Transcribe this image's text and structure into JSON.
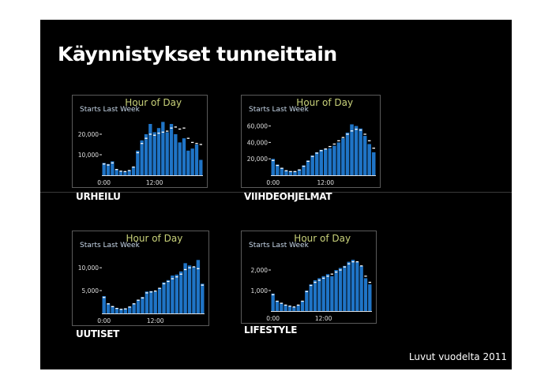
{
  "title": "Käynnistykset tunneittain",
  "footnote": "Luvut vuodelta 2011",
  "colors": {
    "bar": "#1f74c6",
    "bar_light": "#3f8fd8",
    "frame": "#5a5a5a",
    "title": "#c9d27a",
    "label": "#c8d8ea",
    "tick": "#e0e0e0",
    "marker": "#ffffff"
  },
  "chart_data": [
    {
      "type": "bar",
      "caption": "URHEILU",
      "title": "Hour of Day",
      "subtitle": "Starts Last Week",
      "ylim": [
        0,
        30000
      ],
      "yticks": [
        {
          "v": 10000,
          "label": "10,000"
        },
        {
          "v": 20000,
          "label": "20,000"
        }
      ],
      "xticks": [
        {
          "i": 0,
          "label": "0:00"
        },
        {
          "i": 12,
          "label": "12:00"
        }
      ],
      "values": [
        6000,
        5500,
        6800,
        3000,
        2200,
        2000,
        2500,
        4200,
        12000,
        17000,
        20000,
        25000,
        21000,
        23000,
        26000,
        21000,
        25000,
        20000,
        16000,
        18000,
        12000,
        13000,
        15000,
        7500
      ],
      "last_week": [
        5500,
        5000,
        6000,
        2800,
        2000,
        1800,
        2300,
        4000,
        11000,
        15500,
        18000,
        20000,
        19500,
        20500,
        21000,
        21500,
        23000,
        23500,
        22500,
        23000,
        18000,
        16000,
        15500,
        15000
      ]
    },
    {
      "type": "bar",
      "caption": "VIIHDEOHJELMAT",
      "title": "Hour of Day",
      "subtitle": "Starts Last Week",
      "ylim": [
        0,
        75000
      ],
      "yticks": [
        {
          "v": 20000,
          "label": "20,000"
        },
        {
          "v": 40000,
          "label": "40,000"
        },
        {
          "v": 60000,
          "label": "60,000"
        }
      ],
      "xticks": [
        {
          "i": 0,
          "label": "0:00"
        },
        {
          "i": 12,
          "label": "12:00"
        }
      ],
      "values": [
        20000,
        13000,
        9000,
        6000,
        5000,
        5000,
        7000,
        12000,
        18000,
        24000,
        28000,
        31000,
        32000,
        33000,
        36000,
        40000,
        45000,
        52000,
        62000,
        60000,
        57000,
        48000,
        38000,
        28000
      ],
      "last_week": [
        18000,
        12000,
        8500,
        5500,
        4500,
        4500,
        6500,
        11000,
        17000,
        23000,
        27000,
        30000,
        32000,
        35000,
        38000,
        42000,
        46000,
        50000,
        54000,
        56000,
        55000,
        50000,
        42000,
        33000
      ]
    },
    {
      "type": "bar",
      "caption": "UUTISET",
      "title": "Hour of Day",
      "subtitle": "Starts Last Week",
      "ylim": [
        0,
        14000
      ],
      "yticks": [
        {
          "v": 5000,
          "label": "5,000"
        },
        {
          "v": 10000,
          "label": "10,000"
        }
      ],
      "xticks": [
        {
          "i": 0,
          "label": "0:00"
        },
        {
          "i": 12,
          "label": "12:00"
        }
      ],
      "values": [
        3800,
        2200,
        1600,
        1200,
        1000,
        1100,
        1500,
        2200,
        3000,
        3600,
        4800,
        4900,
        4800,
        5600,
        6800,
        7300,
        8300,
        8500,
        9200,
        11000,
        10500,
        10200,
        11700,
        6500
      ],
      "last_week": [
        3500,
        2100,
        1500,
        1100,
        900,
        1000,
        1400,
        2100,
        2900,
        3400,
        4500,
        4700,
        4900,
        5500,
        6500,
        7000,
        7600,
        8000,
        8600,
        9600,
        10000,
        10200,
        9800,
        6200
      ]
    },
    {
      "type": "bar",
      "caption": "LIFESTYLE",
      "title": "Hour of Day",
      "subtitle": "Starts Last Week",
      "ylim": [
        0,
        3000
      ],
      "yticks": [
        {
          "v": 1000,
          "label": "1,000"
        },
        {
          "v": 2000,
          "label": "2,000"
        }
      ],
      "xticks": [
        {
          "i": 0,
          "label": "0:00"
        },
        {
          "i": 12,
          "label": "12:00"
        }
      ],
      "values": [
        850,
        500,
        400,
        300,
        250,
        200,
        300,
        500,
        1000,
        1300,
        1500,
        1600,
        1700,
        1800,
        1700,
        2000,
        2100,
        2200,
        2400,
        2500,
        2400,
        2200,
        1600,
        1300
      ],
      "last_week": [
        800,
        480,
        380,
        290,
        240,
        200,
        290,
        480,
        950,
        1250,
        1400,
        1500,
        1600,
        1700,
        1800,
        1900,
        2000,
        2150,
        2300,
        2400,
        2400,
        2200,
        1700,
        1400
      ]
    }
  ]
}
